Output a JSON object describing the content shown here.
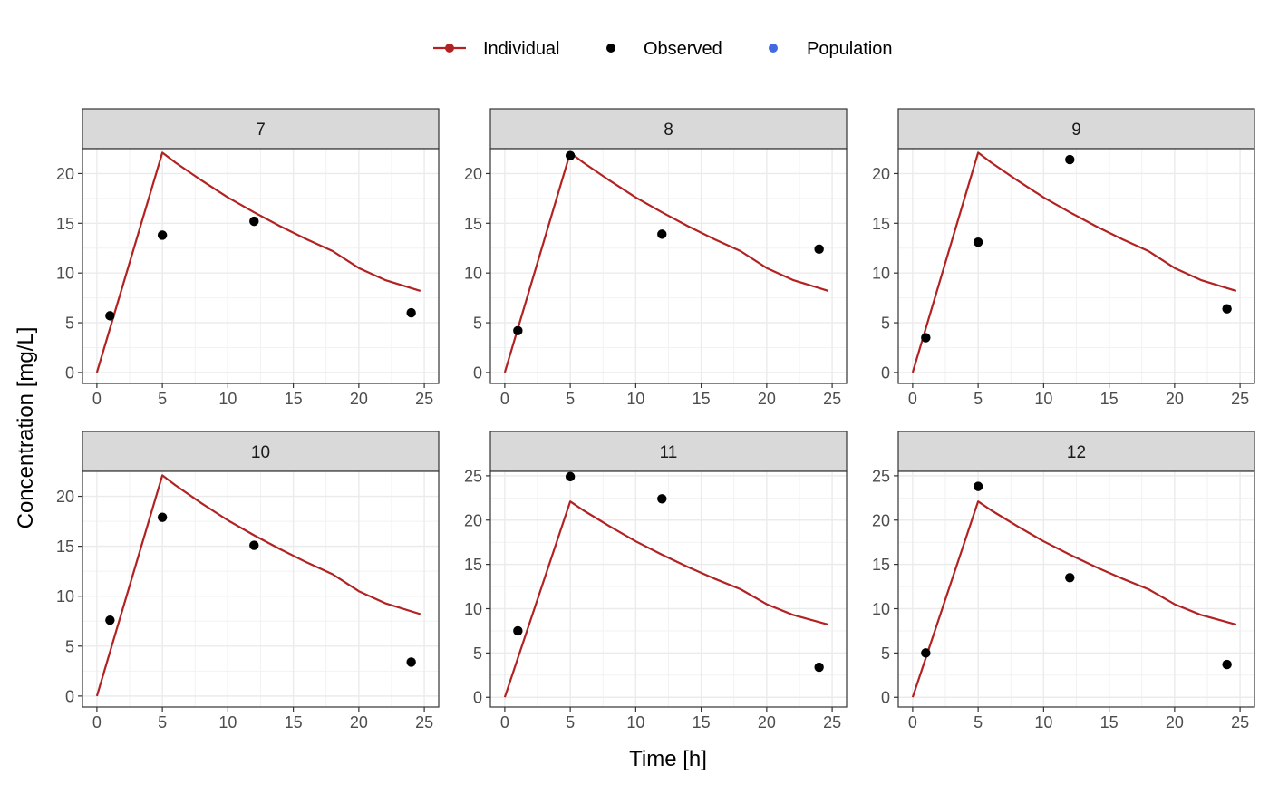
{
  "legend": {
    "items": [
      {
        "label": "Individual",
        "color": "#B22222",
        "symbol": "line-point"
      },
      {
        "label": "Observed",
        "color": "#000000",
        "symbol": "point"
      },
      {
        "label": "Population",
        "color": "#4169E1",
        "symbol": "point"
      }
    ],
    "position": "top-center"
  },
  "xlabel": "Time [h]",
  "ylabel": "Concentration [mg/L]",
  "chart_data": {
    "type": "line",
    "layout": "faceted 2x3",
    "xlabel": "Time [h]",
    "ylabel": "Concentration [mg/L]",
    "xlim": [
      0,
      25
    ],
    "x_ticks": [
      0,
      5,
      10,
      15,
      20,
      25
    ],
    "x_tick_labels": [
      "0",
      "5",
      "10",
      "15",
      "20",
      "25"
    ],
    "grid": true,
    "legend_position": "top",
    "series_colors": {
      "Individual": "#B22222",
      "Observed": "#000000",
      "Population": "#4169E1"
    },
    "individual_curve": {
      "x": [
        0,
        5,
        6,
        8,
        10,
        12,
        14,
        16,
        18,
        20,
        22,
        24
      ],
      "y": [
        0,
        22.1,
        21.1,
        19.3,
        17.6,
        16.1,
        14.7,
        13.4,
        12.2,
        11.2,
        10.2,
        9.3
      ]
    },
    "panels": [
      {
        "id": "7",
        "ylim": [
          0,
          22.5
        ],
        "y_ticks": [
          0,
          5,
          10,
          15,
          20
        ],
        "observed": {
          "x": [
            1,
            5,
            12,
            24
          ],
          "y": [
            5.7,
            13.8,
            15.2,
            6.0
          ]
        },
        "individual": {
          "x": [
            0,
            5,
            6,
            8,
            10,
            12,
            14,
            16,
            18,
            20,
            22,
            24.7
          ],
          "y": [
            0,
            22.1,
            21.1,
            19.3,
            17.6,
            16.1,
            14.7,
            13.4,
            12.2,
            10.5,
            9.3,
            8.2
          ]
        }
      },
      {
        "id": "8",
        "ylim": [
          0,
          22.5
        ],
        "y_ticks": [
          0,
          5,
          10,
          15,
          20
        ],
        "observed": {
          "x": [
            1,
            5,
            12,
            24
          ],
          "y": [
            4.2,
            21.8,
            13.9,
            12.4
          ]
        },
        "individual": {
          "x": [
            0,
            5,
            6,
            8,
            10,
            12,
            14,
            16,
            18,
            20,
            22,
            24.7
          ],
          "y": [
            0,
            22.1,
            21.1,
            19.3,
            17.6,
            16.1,
            14.7,
            13.4,
            12.2,
            10.5,
            9.3,
            8.2
          ]
        }
      },
      {
        "id": "9",
        "ylim": [
          0,
          22.5
        ],
        "y_ticks": [
          0,
          5,
          10,
          15,
          20
        ],
        "observed": {
          "x": [
            1,
            5,
            12,
            24
          ],
          "y": [
            3.5,
            13.1,
            21.4,
            6.4
          ]
        },
        "individual": {
          "x": [
            0,
            5,
            6,
            8,
            10,
            12,
            14,
            16,
            18,
            20,
            22,
            24.7
          ],
          "y": [
            0,
            22.1,
            21.1,
            19.3,
            17.6,
            16.1,
            14.7,
            13.4,
            12.2,
            10.5,
            9.3,
            8.2
          ]
        }
      },
      {
        "id": "10",
        "ylim": [
          0,
          22.5
        ],
        "y_ticks": [
          0,
          5,
          10,
          15,
          20
        ],
        "observed": {
          "x": [
            1,
            5,
            12,
            24
          ],
          "y": [
            7.6,
            17.9,
            15.1,
            3.4
          ]
        },
        "individual": {
          "x": [
            0,
            5,
            6,
            8,
            10,
            12,
            14,
            16,
            18,
            20,
            22,
            24.7
          ],
          "y": [
            0,
            22.1,
            21.1,
            19.3,
            17.6,
            16.1,
            14.7,
            13.4,
            12.2,
            10.5,
            9.3,
            8.2
          ]
        }
      },
      {
        "id": "11",
        "ylim": [
          0,
          25.5
        ],
        "y_ticks": [
          0,
          5,
          10,
          15,
          20,
          25
        ],
        "observed": {
          "x": [
            1,
            5,
            12,
            24
          ],
          "y": [
            7.5,
            24.9,
            22.4,
            3.4
          ]
        },
        "individual": {
          "x": [
            0,
            5,
            6,
            8,
            10,
            12,
            14,
            16,
            18,
            20,
            22,
            24.7
          ],
          "y": [
            0,
            22.1,
            21.1,
            19.3,
            17.6,
            16.1,
            14.7,
            13.4,
            12.2,
            10.5,
            9.3,
            8.2
          ]
        }
      },
      {
        "id": "12",
        "ylim": [
          0,
          25.5
        ],
        "y_ticks": [
          0,
          5,
          10,
          15,
          20,
          25
        ],
        "observed": {
          "x": [
            1,
            5,
            12,
            24
          ],
          "y": [
            5.0,
            23.8,
            13.5,
            3.7
          ]
        },
        "individual": {
          "x": [
            0,
            5,
            6,
            8,
            10,
            12,
            14,
            16,
            18,
            20,
            22,
            24.7
          ],
          "y": [
            0,
            22.1,
            21.1,
            19.3,
            17.6,
            16.1,
            14.7,
            13.4,
            12.2,
            10.5,
            9.3,
            8.2
          ]
        }
      }
    ]
  }
}
